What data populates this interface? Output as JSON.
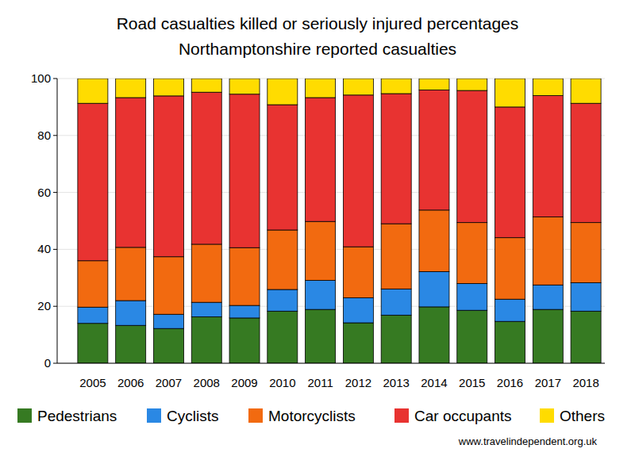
{
  "chart_data": {
    "type": "bar",
    "stacked": true,
    "title": "Road casualties killed or seriously injured percentages",
    "subtitle": "Northamptonshire reported casualties",
    "annotations": [
      "www.travelindependent.org.uk"
    ],
    "categories": [
      "2005",
      "2006",
      "2007",
      "2008",
      "2009",
      "2010",
      "2011",
      "2012",
      "2013",
      "2014",
      "2015",
      "2016",
      "2017",
      "2018"
    ],
    "series": [
      {
        "name": "Pedestrians",
        "color": "#367a22",
        "values": [
          14,
          13.3,
          12.2,
          16.3,
          15.9,
          18.3,
          18.9,
          14.2,
          16.9,
          19.8,
          18.6,
          14.7,
          18.9,
          18.3
        ]
      },
      {
        "name": "Cyclists",
        "color": "#2a88e4",
        "values": [
          5.7,
          8.7,
          5.0,
          5.1,
          4.4,
          7.6,
          10.2,
          8.8,
          9.2,
          12.4,
          9.4,
          7.8,
          8.6,
          10.0
        ]
      },
      {
        "name": "Motorcyclists",
        "color": "#f26a10",
        "values": [
          16.3,
          18.7,
          20.2,
          20.4,
          20.3,
          20.9,
          20.7,
          17.9,
          22.9,
          21.6,
          21.4,
          21.6,
          23.9,
          21.1
        ]
      },
      {
        "name": "Car occupants",
        "color": "#e83331",
        "values": [
          55.3,
          52.6,
          56.5,
          53.4,
          53.9,
          44.0,
          43.5,
          53.3,
          45.7,
          42.2,
          46.4,
          45.9,
          42.6,
          41.9
        ]
      },
      {
        "name": "Others",
        "color": "#ffdc00",
        "values": [
          8.7,
          6.7,
          6.1,
          4.8,
          5.5,
          9.2,
          6.7,
          5.8,
          5.3,
          4.0,
          4.2,
          10.0,
          6.0,
          8.7
        ]
      }
    ],
    "ylim": [
      0,
      100
    ],
    "yticks": [
      0,
      20,
      40,
      60,
      80,
      100
    ],
    "grid": true,
    "legend": "bottom"
  }
}
